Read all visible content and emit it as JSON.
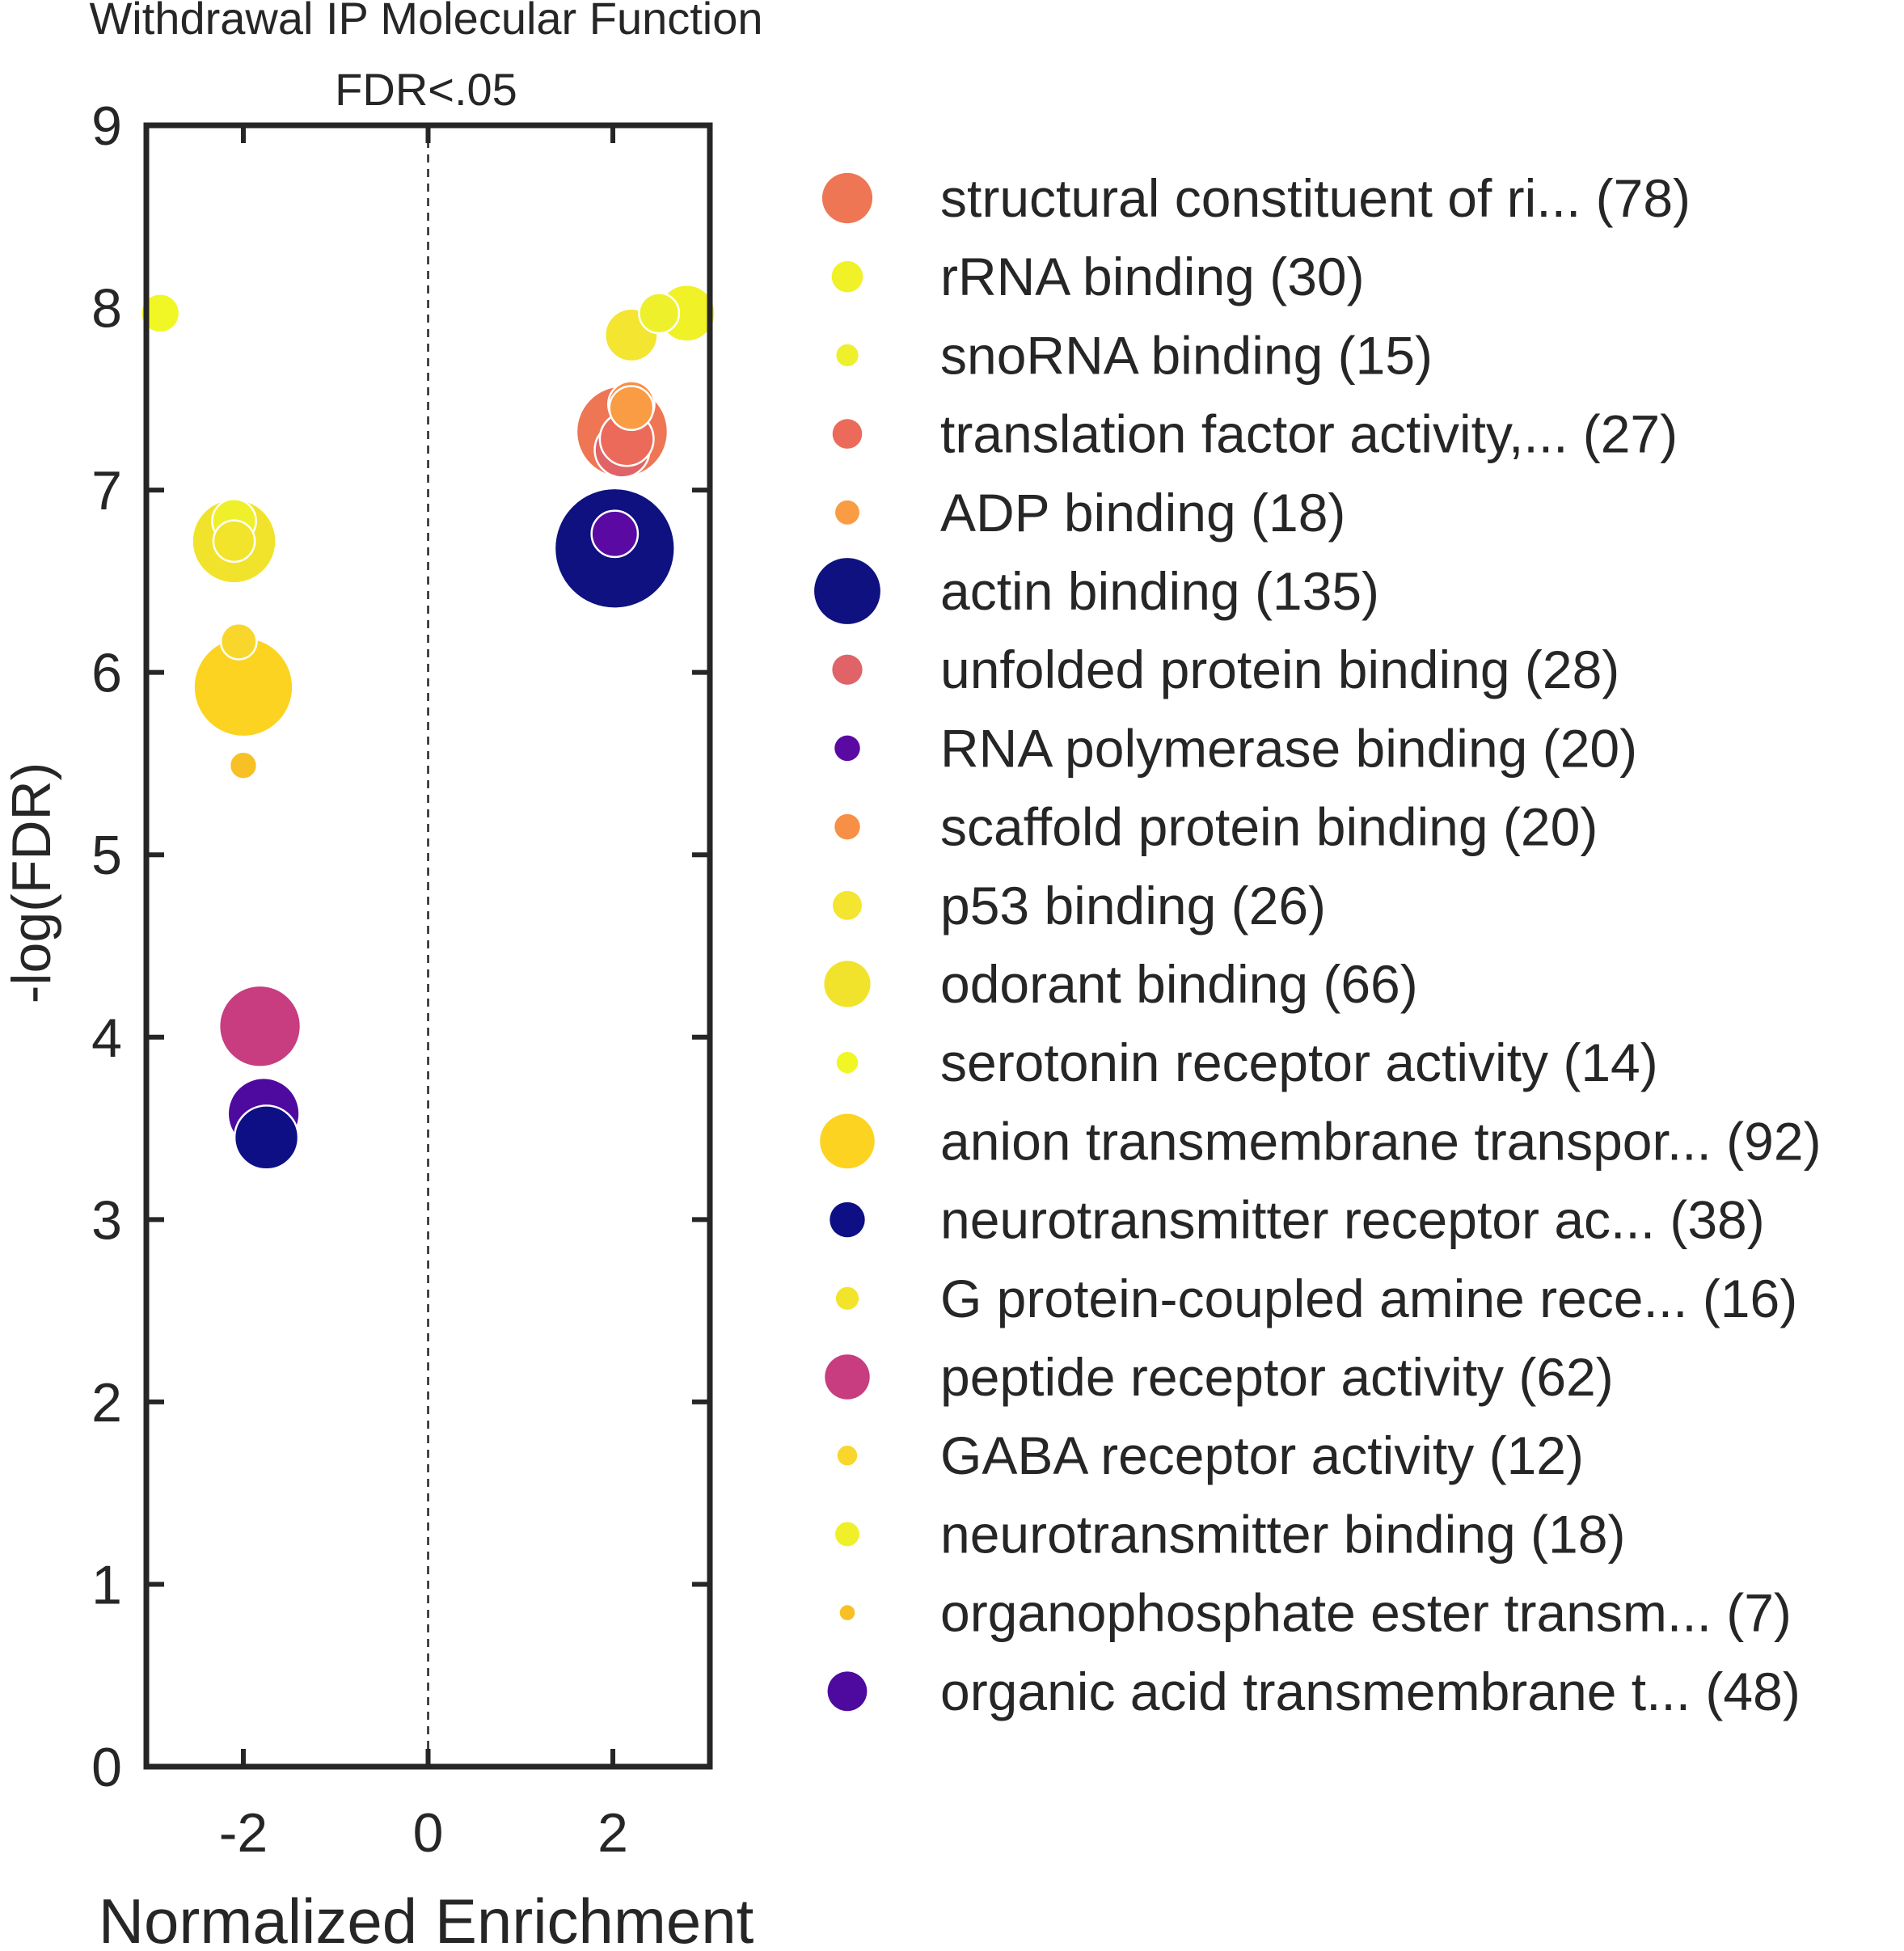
{
  "chart_data": {
    "type": "scatter",
    "title": "Withdrawal IP Molecular Function",
    "subtitle": "FDR<.05",
    "xlabel": "Normalized Enrichment",
    "ylabel": "-log(FDR)",
    "xlim": [
      -3.05,
      3.05
    ],
    "ylim": [
      0,
      9
    ],
    "xticks": [
      -2,
      0,
      2
    ],
    "yticks": [
      0,
      1,
      2,
      3,
      4,
      5,
      6,
      7,
      8,
      9
    ],
    "grid": false,
    "zero_line": "dashed",
    "legend_position": "right",
    "series": [
      {
        "name": "structural constituent of ri... (78)",
        "color": "#ee7655",
        "size": 78,
        "points": [
          [
            2.1,
            7.32
          ]
        ]
      },
      {
        "name": "rRNA binding (30)",
        "color": "#f0f126",
        "size": 30,
        "points": [
          [
            2.8,
            7.97
          ]
        ]
      },
      {
        "name": "snoRNA binding (15)",
        "color": "#eef02c",
        "size": 15,
        "points": [
          [
            2.5,
            7.97
          ]
        ]
      },
      {
        "name": "translation factor activity,... (27)",
        "color": "#ec6a5a",
        "size": 27,
        "points": [
          [
            2.15,
            7.28
          ]
        ]
      },
      {
        "name": "ADP binding (18)",
        "color": "#f99c43",
        "size": 18,
        "points": [
          [
            2.2,
            7.45
          ]
        ]
      },
      {
        "name": "actin binding (135)",
        "color": "#0e117f",
        "size": 135,
        "points": [
          [
            2.02,
            6.68
          ]
        ]
      },
      {
        "name": "unfolded protein binding (28)",
        "color": "#e06467",
        "size": 28,
        "points": [
          [
            2.1,
            7.22
          ]
        ]
      },
      {
        "name": "RNA polymerase binding (20)",
        "color": "#5a0aa2",
        "size": 20,
        "points": [
          [
            2.02,
            6.76
          ]
        ]
      },
      {
        "name": "scaffold protein binding (20)",
        "color": "#f78f46",
        "size": 20,
        "points": [
          [
            2.2,
            7.47
          ]
        ]
      },
      {
        "name": "p53 binding (26)",
        "color": "#f3e530",
        "size": 26,
        "points": [
          [
            2.2,
            7.85
          ]
        ]
      },
      {
        "name": "odorant binding (66)",
        "color": "#f1e32b",
        "size": 66,
        "points": [
          [
            -2.1,
            6.72
          ]
        ]
      },
      {
        "name": "serotonin receptor activity (14)",
        "color": "#f1f625",
        "size": 14,
        "points": [
          [
            -2.9,
            7.97
          ]
        ]
      },
      {
        "name": "anion transmembrane transpor... (92)",
        "color": "#fcd320",
        "size": 92,
        "points": [
          [
            -2.0,
            5.92
          ]
        ]
      },
      {
        "name": "neurotransmitter receptor ac... (38)",
        "color": "#0e0f85",
        "size": 38,
        "points": [
          [
            -1.75,
            3.45
          ]
        ]
      },
      {
        "name": "G protein-coupled amine rece... (16)",
        "color": "#f1e42a",
        "size": 16,
        "points": [
          [
            -2.1,
            6.72
          ]
        ]
      },
      {
        "name": "peptide receptor activity (62)",
        "color": "#c73d80",
        "size": 62,
        "points": [
          [
            -1.82,
            4.06
          ]
        ]
      },
      {
        "name": "GABA receptor activity (12)",
        "color": "#f9d62b",
        "size": 12,
        "points": [
          [
            -2.05,
            6.17
          ]
        ]
      },
      {
        "name": "neurotransmitter binding (18)",
        "color": "#eff02a",
        "size": 18,
        "points": [
          [
            -2.1,
            6.83
          ]
        ]
      },
      {
        "name": "organophosphate ester transm... (7)",
        "color": "#f7c126",
        "size": 7,
        "points": [
          [
            -2.0,
            5.49
          ]
        ]
      },
      {
        "name": "organic acid transmembrane t... (48)",
        "color": "#4e0a9e",
        "size": 48,
        "points": [
          [
            -1.78,
            3.58
          ]
        ]
      }
    ]
  }
}
